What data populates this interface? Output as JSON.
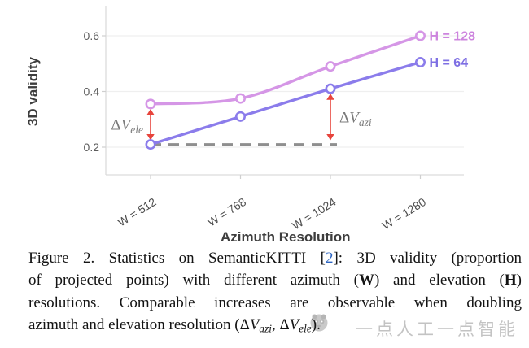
{
  "figure": {
    "caption": {
      "lines": [
        [
          {
            "t": "Figure 2. Statistics on SemanticKITTI [",
            "s": "n"
          },
          {
            "t": "2",
            "s": "link"
          },
          {
            "t": "]: 3D validity (proportion",
            "s": "n"
          }
        ],
        [
          {
            "t": "of projected points) with different azimuth (",
            "s": "n"
          },
          {
            "t": "W",
            "s": "b"
          },
          {
            "t": ") and elevation (",
            "s": "n"
          },
          {
            "t": "H",
            "s": "b"
          },
          {
            "t": ")",
            "s": "n"
          }
        ],
        [
          {
            "t": "resolutions. Comparable increases are observable when doubling",
            "s": "n"
          }
        ],
        [
          {
            "t": "azimuth and elevation resolution (Δ",
            "s": "n"
          },
          {
            "t": "V",
            "s": "i"
          },
          {
            "t": "azi",
            "s": "sub"
          },
          {
            "t": ", Δ",
            "s": "n"
          },
          {
            "t": "V",
            "s": "i"
          },
          {
            "t": "ele",
            "s": "sub"
          },
          {
            "t": ").",
            "s": "n"
          }
        ]
      ]
    },
    "watermark": {
      "text": "一点人工一点智能",
      "logo": "panda-circle-logo",
      "color": "#c3c3c3"
    }
  },
  "chart_data": {
    "type": "line",
    "title": "",
    "xlabel": "Azimuth Resolution",
    "ylabel": "3D validity",
    "x_categories": [
      "W = 512",
      "W = 768",
      "W = 1024",
      "W = 1280"
    ],
    "yticks": [
      0.2,
      0.4,
      0.6
    ],
    "ylim": [
      0.14,
      0.67
    ],
    "grid": true,
    "legend_position": "line-end-labels",
    "series": [
      {
        "name": "H = 128",
        "color": "#d596e6",
        "label_color": "#cd84de",
        "values": [
          0.355,
          0.375,
          0.49,
          0.6
        ]
      },
      {
        "name": "H = 64",
        "color": "#8b7ceb",
        "label_color": "#7e6fe3",
        "values": [
          0.21,
          0.31,
          0.41,
          0.505
        ]
      }
    ],
    "annotations": {
      "baseline_dash": {
        "y": 0.21,
        "from_category": 0,
        "to_category": 2,
        "color": "#8f8f8f"
      },
      "arrow_color": "#e7443c",
      "label_color": "#7b7b7b",
      "arrows": [
        {
          "category": 0,
          "from": 0.355,
          "to": 0.21,
          "side": "left",
          "label": {
            "base": "ΔV",
            "sub": "ele"
          }
        },
        {
          "category": 2,
          "from": 0.41,
          "to": 0.21,
          "side": "right",
          "label": {
            "base": "ΔV",
            "sub": "azi"
          }
        }
      ]
    },
    "style_colors": {
      "gridline": "#efefef",
      "spine": "#dcdcdc",
      "tick": "#cfcfcf",
      "tick_label": "#4d4d4d",
      "axis_title": "#3d3d3d"
    }
  }
}
